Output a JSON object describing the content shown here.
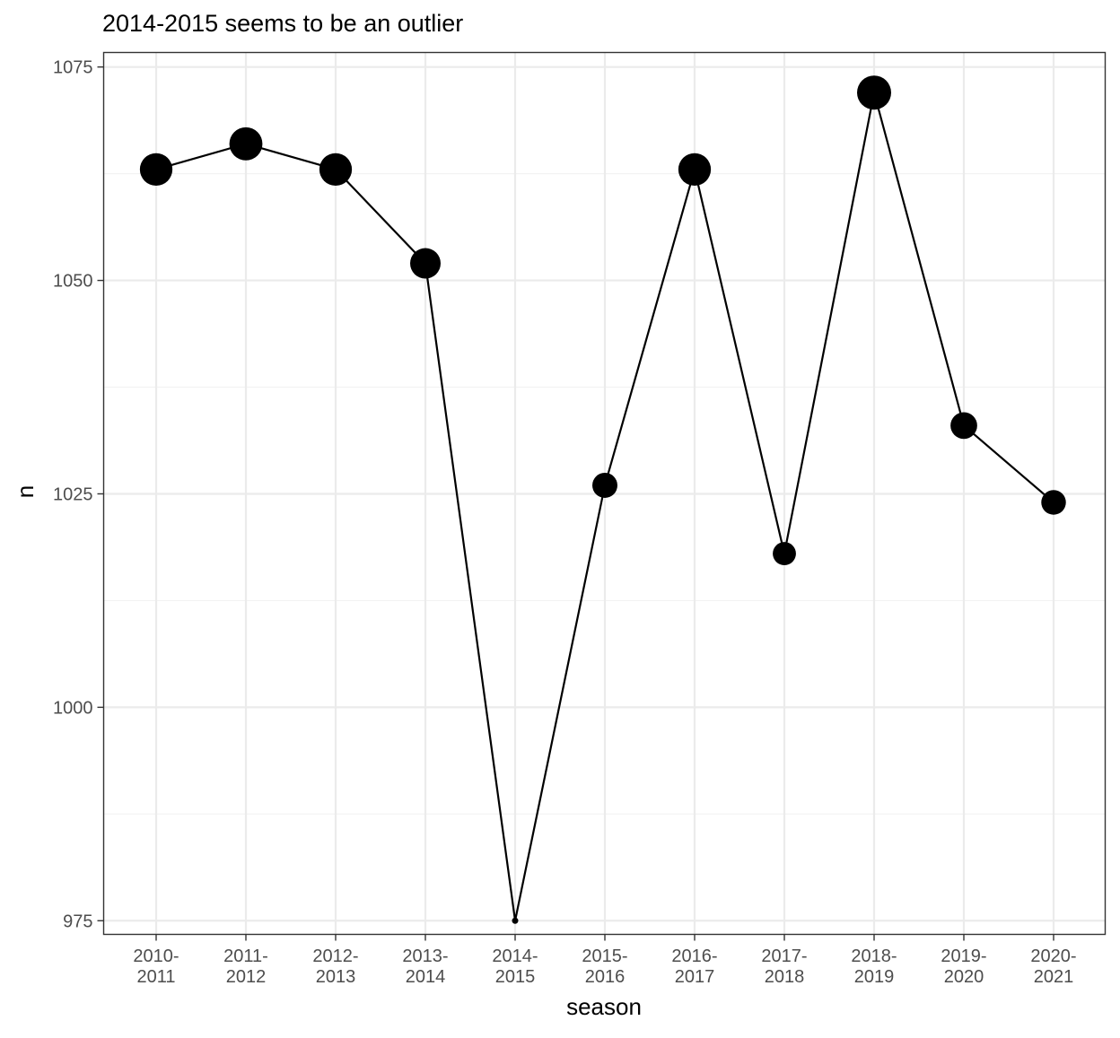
{
  "chart_data": {
    "type": "line",
    "title": "2014-2015 seems to be an outlier",
    "xlabel": "season",
    "ylabel": "n",
    "categories": [
      [
        "2010-",
        "2011"
      ],
      [
        "2011-",
        "2012"
      ],
      [
        "2012-",
        "2013"
      ],
      [
        "2013-",
        "2014"
      ],
      [
        "2014-",
        "2015"
      ],
      [
        "2015-",
        "2016"
      ],
      [
        "2016-",
        "2017"
      ],
      [
        "2017-",
        "2018"
      ],
      [
        "2018-",
        "2019"
      ],
      [
        "2019-",
        "2020"
      ],
      [
        "2020-",
        "2021"
      ]
    ],
    "values": [
      1063,
      1066,
      1063,
      1052,
      975,
      1026,
      1063,
      1018,
      1072,
      1033,
      1024
    ],
    "point_size_encodes": "n",
    "ylim": [
      973.4,
      1076.7
    ],
    "yticks": [
      975,
      1000,
      1025,
      1050,
      1075
    ],
    "grid": true,
    "legend": "none",
    "colors": {
      "line": "#000000",
      "points": "#000000",
      "grid_major": "#ebebeb",
      "grid_minor": "#f2f2f2",
      "panel_border": "#333333",
      "tick_label": "#4d4d4d"
    }
  }
}
